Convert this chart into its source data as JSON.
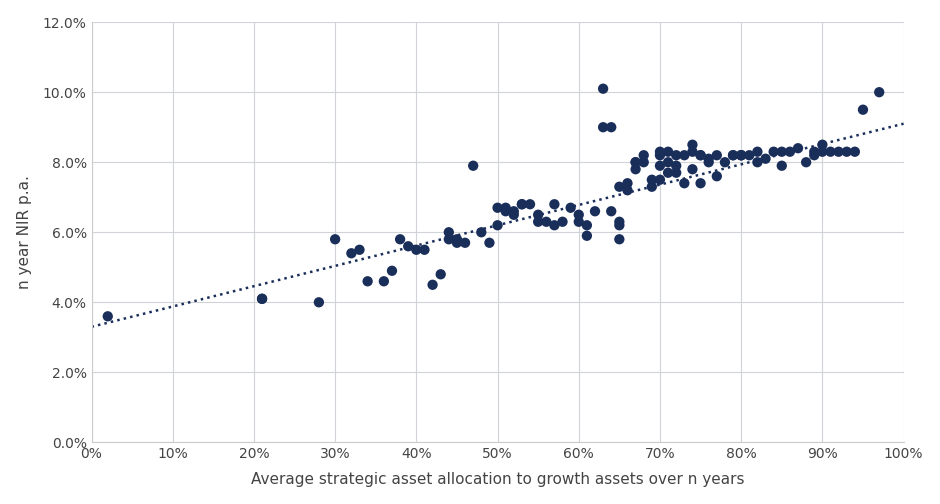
{
  "scatter_x": [
    0.02,
    0.21,
    0.21,
    0.28,
    0.3,
    0.32,
    0.33,
    0.34,
    0.36,
    0.37,
    0.38,
    0.39,
    0.4,
    0.41,
    0.42,
    0.43,
    0.44,
    0.44,
    0.45,
    0.45,
    0.46,
    0.47,
    0.48,
    0.49,
    0.5,
    0.5,
    0.51,
    0.51,
    0.52,
    0.52,
    0.53,
    0.53,
    0.54,
    0.55,
    0.55,
    0.56,
    0.57,
    0.57,
    0.58,
    0.59,
    0.6,
    0.6,
    0.61,
    0.61,
    0.62,
    0.63,
    0.63,
    0.64,
    0.64,
    0.65,
    0.65,
    0.65,
    0.65,
    0.66,
    0.66,
    0.67,
    0.67,
    0.67,
    0.68,
    0.68,
    0.69,
    0.69,
    0.7,
    0.7,
    0.7,
    0.7,
    0.71,
    0.71,
    0.71,
    0.72,
    0.72,
    0.72,
    0.73,
    0.73,
    0.74,
    0.74,
    0.74,
    0.75,
    0.75,
    0.75,
    0.76,
    0.76,
    0.77,
    0.77,
    0.78,
    0.79,
    0.79,
    0.8,
    0.8,
    0.8,
    0.81,
    0.82,
    0.82,
    0.83,
    0.84,
    0.85,
    0.85,
    0.86,
    0.87,
    0.88,
    0.89,
    0.89,
    0.9,
    0.9,
    0.91,
    0.92,
    0.93,
    0.94,
    0.95,
    0.97
  ],
  "scatter_y": [
    0.036,
    0.041,
    0.041,
    0.04,
    0.058,
    0.054,
    0.055,
    0.046,
    0.046,
    0.049,
    0.058,
    0.056,
    0.055,
    0.055,
    0.045,
    0.048,
    0.058,
    0.06,
    0.058,
    0.057,
    0.057,
    0.079,
    0.06,
    0.057,
    0.062,
    0.067,
    0.066,
    0.067,
    0.065,
    0.066,
    0.068,
    0.068,
    0.068,
    0.063,
    0.065,
    0.063,
    0.068,
    0.062,
    0.063,
    0.067,
    0.063,
    0.065,
    0.059,
    0.062,
    0.066,
    0.101,
    0.09,
    0.09,
    0.066,
    0.073,
    0.063,
    0.062,
    0.058,
    0.074,
    0.072,
    0.08,
    0.08,
    0.078,
    0.082,
    0.08,
    0.075,
    0.073,
    0.082,
    0.083,
    0.075,
    0.079,
    0.08,
    0.077,
    0.083,
    0.077,
    0.082,
    0.079,
    0.082,
    0.074,
    0.078,
    0.083,
    0.085,
    0.074,
    0.082,
    0.082,
    0.081,
    0.08,
    0.082,
    0.076,
    0.08,
    0.082,
    0.082,
    0.082,
    0.082,
    0.082,
    0.082,
    0.08,
    0.083,
    0.081,
    0.083,
    0.083,
    0.079,
    0.083,
    0.084,
    0.08,
    0.083,
    0.082,
    0.085,
    0.083,
    0.083,
    0.083,
    0.083,
    0.083,
    0.095,
    0.1
  ],
  "dot_color": "#1a2e5a",
  "line_color": "#1a2e5a",
  "background_color": "#ffffff",
  "plot_bg_color": "#ffffff",
  "grid_color": "#d0d3d8",
  "xlabel": "Average strategic asset allocation to growth assets over n years",
  "ylabel": "n year NIR p.a.",
  "xlim": [
    0.0,
    1.0
  ],
  "ylim": [
    0.0,
    0.12
  ],
  "xtick_vals": [
    0.0,
    0.1,
    0.2,
    0.3,
    0.4,
    0.5,
    0.6,
    0.7,
    0.8,
    0.9,
    1.0
  ],
  "ytick_vals": [
    0.0,
    0.02,
    0.04,
    0.06,
    0.08,
    0.1,
    0.12
  ],
  "trendline_slope": 0.058,
  "trendline_intercept": 0.033,
  "marker_size": 55,
  "xlabel_fontsize": 11,
  "ylabel_fontsize": 11,
  "tick_fontsize": 10,
  "spine_color": "#cccccc"
}
